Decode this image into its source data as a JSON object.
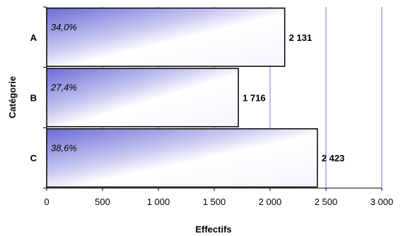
{
  "chart_data": {
    "type": "bar",
    "orientation": "horizontal",
    "categories": [
      "A",
      "B",
      "C"
    ],
    "values": [
      2131,
      1716,
      2423
    ],
    "value_labels": [
      "2 131",
      "1 716",
      "2 423"
    ],
    "percent_labels": [
      "34,0%",
      "27,4%",
      "38,6%"
    ],
    "xlabel": "Effectifs",
    "ylabel": "Catégorie",
    "xlim": [
      0,
      3000
    ],
    "xticks": [
      0,
      500,
      1000,
      1500,
      2000,
      2500,
      3000
    ],
    "xtick_labels": [
      "0",
      "500",
      "1 000",
      "1 500",
      "2 000",
      "2 500",
      "3 000"
    ],
    "grid": "vertical-major",
    "legend": "none",
    "colors": {
      "bar_gradient_dark": "#6b6bd6",
      "bar_gradient_light": "#ffffff",
      "grid": "#6a7fd8",
      "axis": "#000000"
    }
  }
}
